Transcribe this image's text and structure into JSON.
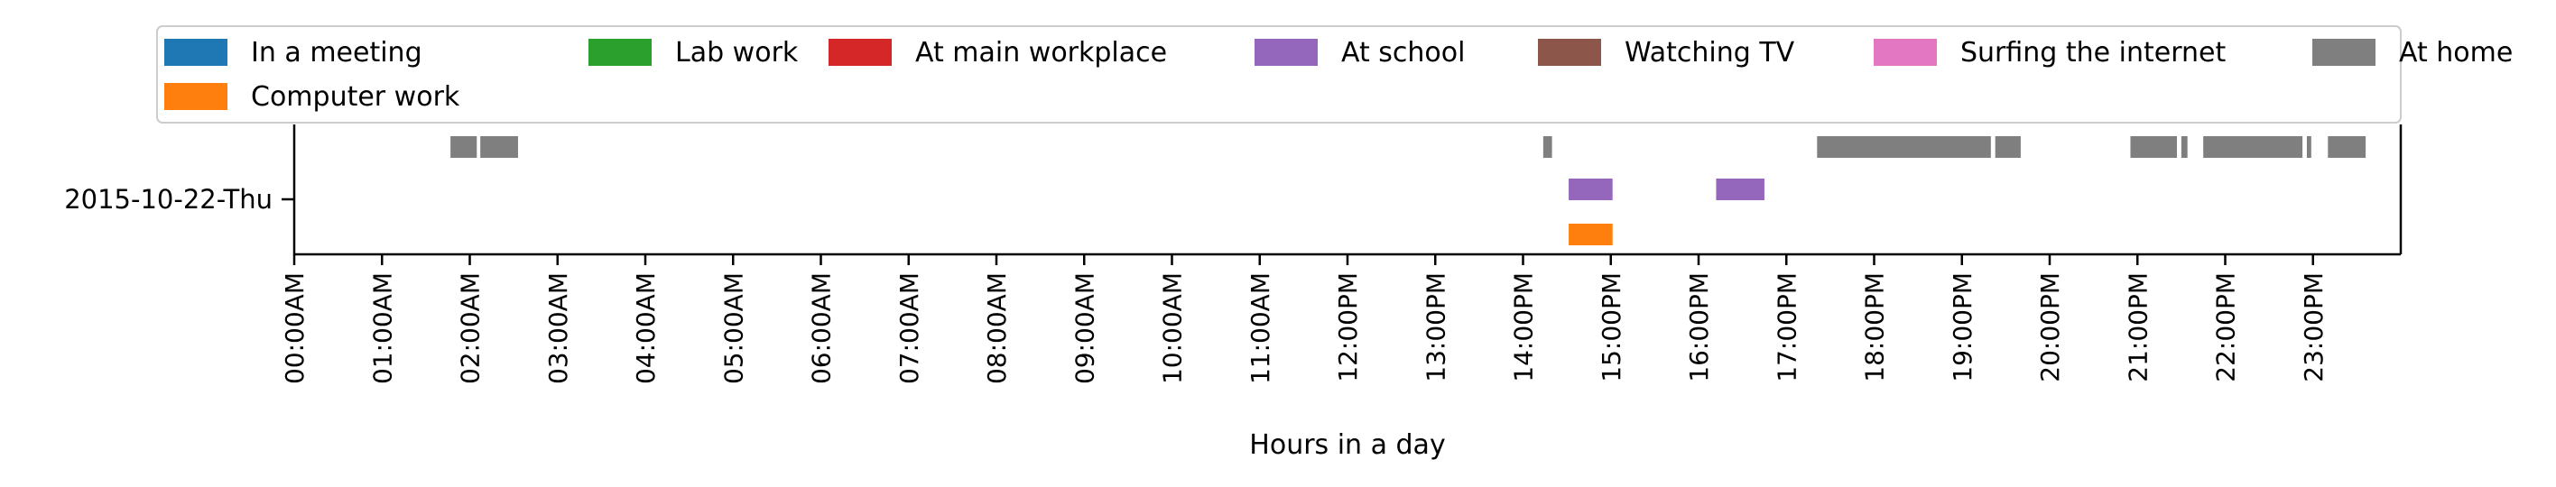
{
  "chart_data": {
    "type": "timeline",
    "title": "",
    "xlabel": "Hours in a day",
    "ylabel": "",
    "xlim_hours": [
      0,
      24
    ],
    "x_ticks": [
      "00:00AM",
      "01:00AM",
      "02:00AM",
      "03:00AM",
      "04:00AM",
      "05:00AM",
      "06:00AM",
      "07:00AM",
      "08:00AM",
      "09:00AM",
      "10:00AM",
      "11:00AM",
      "12:00PM",
      "13:00PM",
      "14:00PM",
      "15:00PM",
      "16:00PM",
      "17:00PM",
      "18:00PM",
      "19:00PM",
      "20:00PM",
      "21:00PM",
      "22:00PM",
      "23:00PM"
    ],
    "y_categories": [
      "2015-10-22-Thu"
    ],
    "legend_position": "top",
    "legend": [
      {
        "label": "In a meeting",
        "color": "#1f77b4"
      },
      {
        "label": "Lab work",
        "color": "#2ca02c"
      },
      {
        "label": "At main workplace",
        "color": "#d62728"
      },
      {
        "label": "At school",
        "color": "#9467bd"
      },
      {
        "label": "Watching TV",
        "color": "#8c564b"
      },
      {
        "label": "Surfing the internet",
        "color": "#e377c2"
      },
      {
        "label": "At home",
        "color": "#7f7f7f"
      },
      {
        "label": "Computer work",
        "color": "#ff7f0e"
      }
    ],
    "series": [
      {
        "name": "At home",
        "color": "#7f7f7f",
        "day": "2015-10-22-Thu",
        "intervals_hours": [
          [
            1.78,
            2.08
          ],
          [
            2.12,
            2.55
          ],
          [
            14.23,
            14.33
          ],
          [
            17.35,
            19.33
          ],
          [
            19.38,
            19.67
          ],
          [
            20.92,
            21.45
          ],
          [
            21.5,
            21.57
          ],
          [
            21.75,
            22.88
          ],
          [
            22.93,
            22.98
          ],
          [
            23.17,
            23.6
          ]
        ]
      },
      {
        "name": "At school",
        "color": "#9467bd",
        "day": "2015-10-22-Thu",
        "intervals_hours": [
          [
            14.52,
            15.02
          ],
          [
            16.2,
            16.75
          ]
        ]
      },
      {
        "name": "Computer work",
        "color": "#ff7f0e",
        "day": "2015-10-22-Thu",
        "intervals_hours": [
          [
            14.52,
            15.02
          ]
        ]
      }
    ]
  }
}
